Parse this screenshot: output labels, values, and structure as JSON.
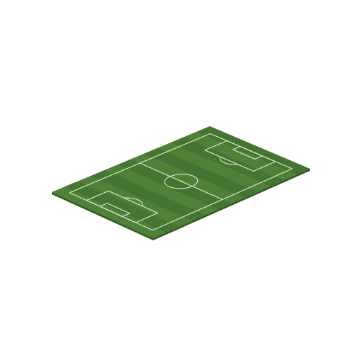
{
  "scene": {
    "object": "isometric-soccer-pitch",
    "view": "isometric",
    "background_color": "#ffffff"
  },
  "pitch": {
    "grass_color": "#4a7a34",
    "grass_stripe_light": "#55873b",
    "grass_stripe_dark": "#446f30",
    "edge_color": "#2f5a22",
    "line_color": "#dfe8d6",
    "stripe_count": 12
  },
  "markings": [
    "touchline",
    "halfway-line",
    "center-circle",
    "center-spot",
    "penalty-area-left",
    "goal-area-left",
    "penalty-arc-left",
    "penalty-area-right",
    "goal-area-right",
    "penalty-arc-right"
  ]
}
